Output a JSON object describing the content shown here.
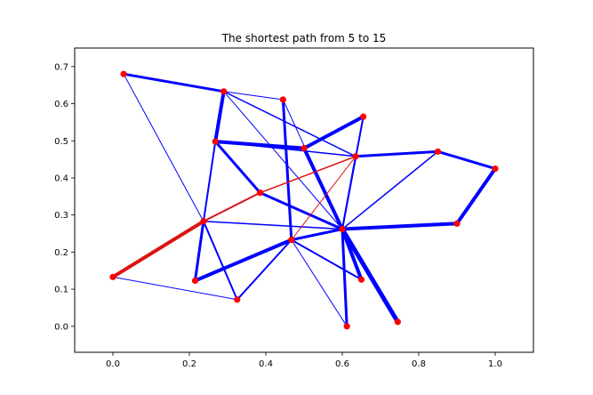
{
  "chart_data": {
    "type": "graph",
    "title": "The shortest path from 5 to 15",
    "xlim": [
      -0.1,
      1.1
    ],
    "ylim": [
      -0.07,
      0.75
    ],
    "xticks": [
      0.0,
      0.2,
      0.4,
      0.6,
      0.8,
      1.0
    ],
    "xtick_labels": [
      "0.0",
      "0.2",
      "0.4",
      "0.6",
      "0.8",
      "1.0"
    ],
    "yticks": [
      0.0,
      0.1,
      0.2,
      0.3,
      0.4,
      0.5,
      0.6,
      0.7
    ],
    "ytick_labels": [
      "0.0",
      "0.1",
      "0.2",
      "0.3",
      "0.4",
      "0.5",
      "0.6",
      "0.7"
    ],
    "colors": {
      "edge": "#0000ff",
      "path": "#dd1111",
      "node": "#ff0000"
    },
    "nodes": [
      {
        "id": 0,
        "x": 0.028,
        "y": 0.68
      },
      {
        "id": 1,
        "x": 0.29,
        "y": 0.633
      },
      {
        "id": 2,
        "x": 0.445,
        "y": 0.611
      },
      {
        "id": 3,
        "x": 0.655,
        "y": 0.565
      },
      {
        "id": 4,
        "x": 0.268,
        "y": 0.498
      },
      {
        "id": 5,
        "x": 0.5,
        "y": 0.48
      },
      {
        "id": 6,
        "x": 0.635,
        "y": 0.458
      },
      {
        "id": 7,
        "x": 0.85,
        "y": 0.471
      },
      {
        "id": 8,
        "x": 1.0,
        "y": 0.425
      },
      {
        "id": 9,
        "x": 0.385,
        "y": 0.36
      },
      {
        "id": 10,
        "x": 0.237,
        "y": 0.283
      },
      {
        "id": 11,
        "x": 0.6,
        "y": 0.262
      },
      {
        "id": 12,
        "x": 0.9,
        "y": 0.277
      },
      {
        "id": 13,
        "x": 0.467,
        "y": 0.233
      },
      {
        "id": 14,
        "x": 0.0,
        "y": 0.133
      },
      {
        "id": 15,
        "x": 0.215,
        "y": 0.123
      },
      {
        "id": 16,
        "x": 0.65,
        "y": 0.126
      },
      {
        "id": 17,
        "x": 0.325,
        "y": 0.072
      },
      {
        "id": 18,
        "x": 0.745,
        "y": 0.012
      },
      {
        "id": 19,
        "x": 0.612,
        "y": 0.0
      }
    ],
    "edges": [
      {
        "from": 0,
        "to": 1,
        "weight": 3
      },
      {
        "from": 0,
        "to": 10,
        "weight": 1
      },
      {
        "from": 1,
        "to": 4,
        "weight": 4
      },
      {
        "from": 1,
        "to": 2,
        "weight": 1
      },
      {
        "from": 1,
        "to": 6,
        "weight": 1.5
      },
      {
        "from": 1,
        "to": 11,
        "weight": 1
      },
      {
        "from": 2,
        "to": 13,
        "weight": 3
      },
      {
        "from": 2,
        "to": 11,
        "weight": 1
      },
      {
        "from": 3,
        "to": 5,
        "weight": 4
      },
      {
        "from": 3,
        "to": 11,
        "weight": 2
      },
      {
        "from": 4,
        "to": 5,
        "weight": 4
      },
      {
        "from": 4,
        "to": 9,
        "weight": 3
      },
      {
        "from": 4,
        "to": 10,
        "weight": 2
      },
      {
        "from": 4,
        "to": 6,
        "weight": 1.5
      },
      {
        "from": 5,
        "to": 11,
        "weight": 4
      },
      {
        "from": 6,
        "to": 7,
        "weight": 3
      },
      {
        "from": 6,
        "to": 11,
        "weight": 2
      },
      {
        "from": 7,
        "to": 8,
        "weight": 3
      },
      {
        "from": 7,
        "to": 11,
        "weight": 1.5
      },
      {
        "from": 8,
        "to": 12,
        "weight": 4
      },
      {
        "from": 9,
        "to": 11,
        "weight": 3
      },
      {
        "from": 10,
        "to": 15,
        "weight": 3
      },
      {
        "from": 10,
        "to": 11,
        "weight": 1.5
      },
      {
        "from": 10,
        "to": 17,
        "weight": 2
      },
      {
        "from": 11,
        "to": 12,
        "weight": 4
      },
      {
        "from": 11,
        "to": 13,
        "weight": 3
      },
      {
        "from": 11,
        "to": 16,
        "weight": 4
      },
      {
        "from": 11,
        "to": 18,
        "weight": 5
      },
      {
        "from": 11,
        "to": 19,
        "weight": 3
      },
      {
        "from": 13,
        "to": 15,
        "weight": 4
      },
      {
        "from": 13,
        "to": 17,
        "weight": 2
      },
      {
        "from": 13,
        "to": 19,
        "weight": 1
      },
      {
        "from": 13,
        "to": 16,
        "weight": 2
      },
      {
        "from": 14,
        "to": 17,
        "weight": 1
      }
    ],
    "path_edges": [
      {
        "from": 14,
        "to": 10,
        "weight": 4
      },
      {
        "from": 10,
        "to": 9,
        "weight": 2
      },
      {
        "from": 9,
        "to": 6,
        "weight": 1.5
      },
      {
        "from": 6,
        "to": 13,
        "weight": 1
      }
    ]
  }
}
